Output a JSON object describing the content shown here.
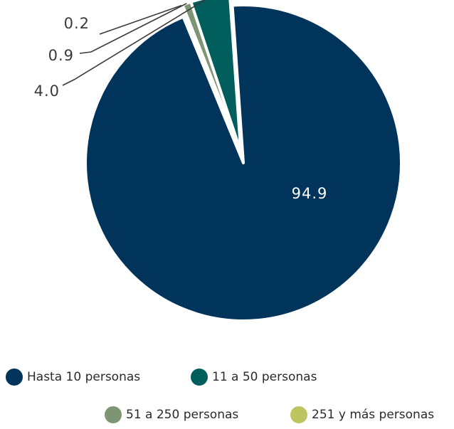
{
  "chart_data": {
    "type": "pie",
    "title": "",
    "start_angle_deg": -4,
    "exploded_slices": [
      "11 a 50 personas",
      "51 a 250 personas",
      "251 y más personas"
    ],
    "slices": [
      {
        "label": "Hasta 10 personas",
        "value": 94.9,
        "value_label": "94.9",
        "color": "#00345a"
      },
      {
        "label": "11 a 50 personas",
        "value": 4.0,
        "value_label": "4.0",
        "color": "#005e5c"
      },
      {
        "label": "51 a 250 personas",
        "value": 0.9,
        "value_label": "0.9",
        "color": "#7e9574"
      },
      {
        "label": "251 y más personas",
        "value": 0.2,
        "value_label": "0.2",
        "color": "#bcc55f"
      }
    ],
    "legend": {
      "placement": "bottom",
      "items": [
        "Hasta 10 personas",
        "11 a 50 personas",
        "51 a 250 personas",
        "251 y más personas"
      ]
    }
  }
}
